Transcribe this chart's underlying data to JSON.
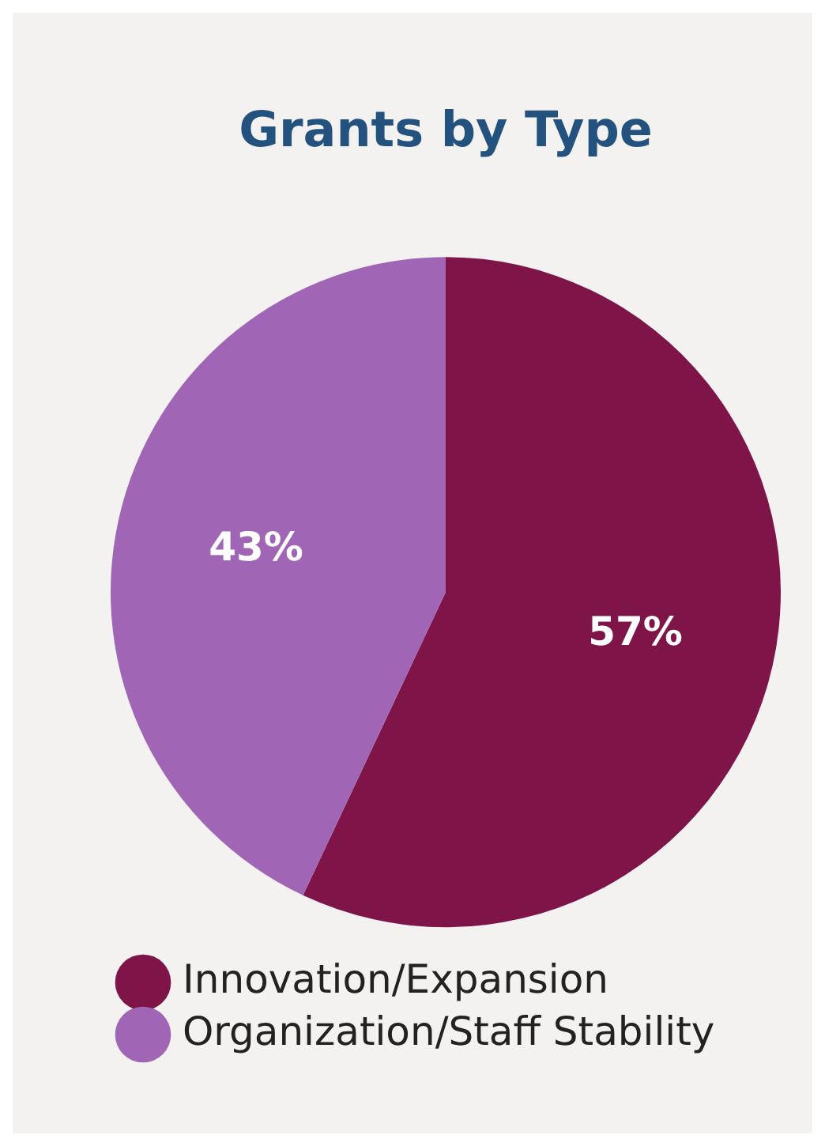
{
  "chart_data": {
    "type": "pie",
    "title": "Grants by Type",
    "categories": [
      "Innovation/Expansion",
      "Organization/Staff Stability"
    ],
    "values": [
      57,
      43
    ],
    "colors": [
      "#7f1449",
      "#a066b5"
    ],
    "value_labels": [
      "57%",
      "43%"
    ],
    "legend": "bottom"
  }
}
